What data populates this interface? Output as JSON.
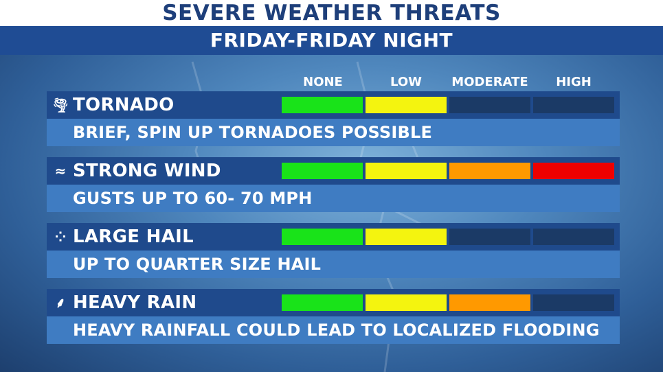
{
  "header": {
    "title": "SEVERE WEATHER THREATS",
    "subtitle": "FRIDAY-FRIDAY NIGHT"
  },
  "levels": [
    "NONE",
    "LOW",
    "MODERATE",
    "HIGH"
  ],
  "level_colors": [
    "#19e319",
    "#f4f40f",
    "#ff9900",
    "#ee0000"
  ],
  "empty_color": "#1b3a66",
  "threats": [
    {
      "name": "TORNADO",
      "icon": "tornado-icon",
      "glyph": "🌪",
      "description": "BRIEF, SPIN UP TORNADOES POSSIBLE",
      "level": 2
    },
    {
      "name": "STRONG WIND",
      "icon": "wind-icon",
      "glyph": "≈",
      "description": "GUSTS UP TO 60- 70 MPH",
      "level": 4
    },
    {
      "name": "LARGE HAIL",
      "icon": "hail-icon",
      "glyph": "⁘",
      "description": "UP TO QUARTER SIZE HAIL",
      "level": 2
    },
    {
      "name": "HEAVY RAIN",
      "icon": "rain-icon",
      "glyph": "⸙",
      "description": "HEAVY RAINFALL COULD LEAD TO LOCALIZED FLOODING",
      "level": 3
    }
  ]
}
